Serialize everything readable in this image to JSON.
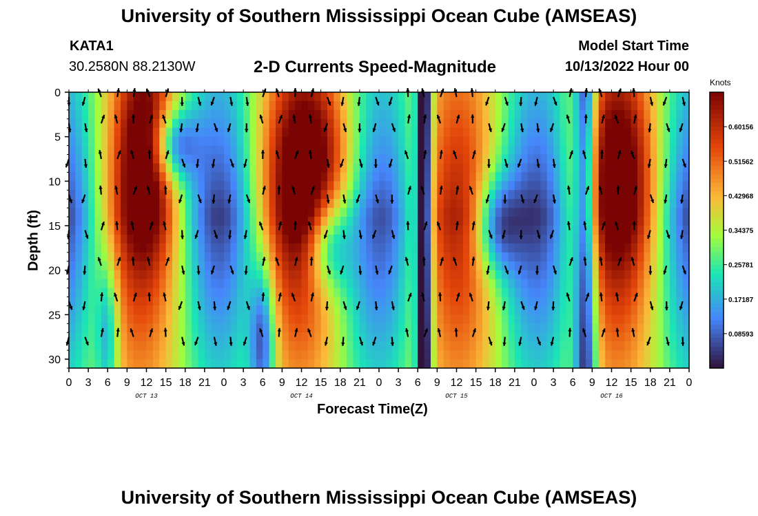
{
  "page": {
    "title": "University of Southern Mississippi Ocean Cube (AMSEAS)",
    "station_id": "KATA1",
    "coordinates": "30.2580N  88.2130W",
    "subtitle": "2-D Currents Speed-Magnitude",
    "model_start_label": "Model Start Time",
    "model_start_value": "10/13/2022 Hour 00",
    "footer_title": "University of Southern Mississippi Ocean Cube (AMSEAS)"
  },
  "chart_data": {
    "type": "heatmap",
    "title": "2-D Currents Speed-Magnitude",
    "xlabel": "Forecast Time(Z)",
    "ylabel": "Depth (ft)",
    "x_range_hours": [
      0,
      96
    ],
    "ylim": [
      0,
      31
    ],
    "x_tick_labels": [
      "0",
      "3",
      "6",
      "9",
      "12",
      "15",
      "18",
      "21",
      "0",
      "3",
      "6",
      "9",
      "12",
      "15",
      "18",
      "21",
      "0",
      "3",
      "6",
      "9",
      "12",
      "15",
      "18",
      "21",
      "0",
      "3",
      "6",
      "9",
      "12",
      "15",
      "18",
      "21",
      "0"
    ],
    "day_labels": [
      {
        "hour": 12,
        "label": "OCT 13"
      },
      {
        "hour": 36,
        "label": "OCT 14"
      },
      {
        "hour": 60,
        "label": "OCT 15"
      },
      {
        "hour": 84,
        "label": "OCT 16"
      }
    ],
    "y_ticks": [
      0,
      5,
      10,
      15,
      20,
      25,
      30
    ],
    "y_tick_labels": [
      "0",
      "5",
      "10",
      "15",
      "20",
      "25",
      "30"
    ],
    "colorbar": {
      "title": "Knots",
      "min": 0.0,
      "max": 0.6875,
      "tick_values": [
        0.08593,
        0.17187,
        0.25781,
        0.34375,
        0.42968,
        0.51562,
        0.60156
      ],
      "tick_labels": [
        "0.08593",
        "0.17187",
        "0.25781",
        "0.34375",
        "0.42968",
        "0.51562",
        "0.60156"
      ]
    },
    "vector_depths_ft": [
      0,
      3.5,
      7.5,
      11.5,
      15.5,
      19.5,
      23.5,
      27.5
    ],
    "vector_hour_step": 2.5,
    "colors": {
      "low": "#30123b",
      "blue": "#4686fb",
      "cyan": "#1be5b5",
      "green": "#a4fc3c",
      "yellow": "#fbb938",
      "orange": "#e4460a",
      "high": "#7a0403"
    }
  }
}
